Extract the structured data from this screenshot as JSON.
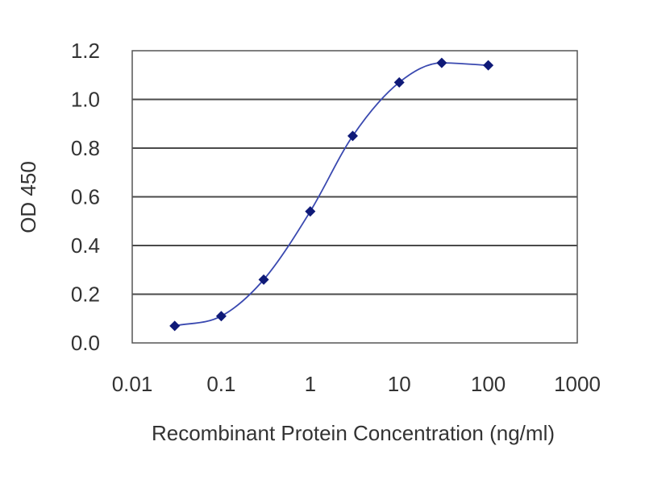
{
  "chart_data": {
    "type": "scatter",
    "title": "",
    "xlabel": "Recombinant Protein Concentration (ng/ml)",
    "ylabel": "OD 450",
    "x_scale": "log",
    "xlim": [
      0.01,
      1000
    ],
    "ylim": [
      0.0,
      1.2
    ],
    "x_ticks": [
      "0.01",
      "0.1",
      "1",
      "10",
      "100",
      "1000"
    ],
    "y_ticks": [
      "0.0",
      "0.2",
      "0.4",
      "0.6",
      "0.8",
      "1.0",
      "1.2"
    ],
    "grid": "horizontal",
    "legend": "none",
    "series": [
      {
        "x": [
          0.03,
          0.1,
          0.3,
          1,
          3,
          10,
          30,
          100
        ],
        "y": [
          0.07,
          0.11,
          0.26,
          0.54,
          0.85,
          1.07,
          1.15,
          1.14
        ],
        "fit_curve": true
      }
    ],
    "colors": {
      "marker": "#0f1a78",
      "line": "#3a49b0",
      "grid": "#4a4a4a",
      "frame": "#555555"
    }
  }
}
